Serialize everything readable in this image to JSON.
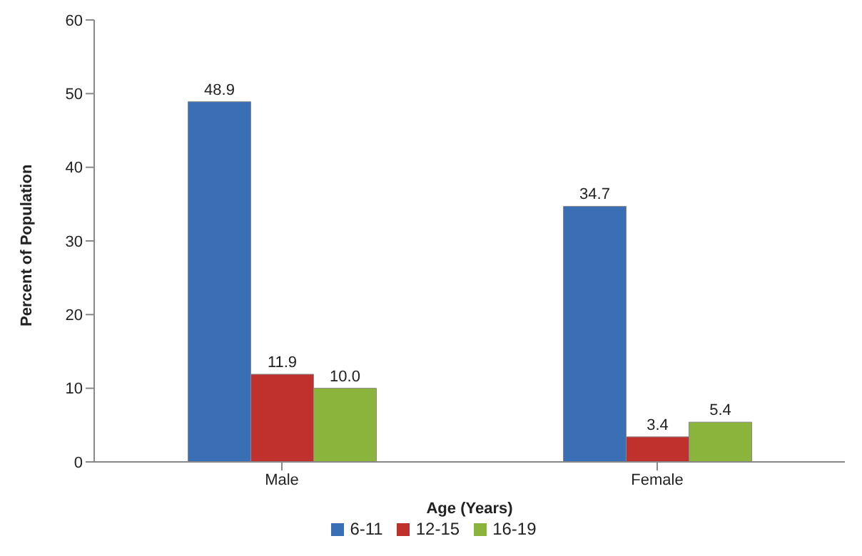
{
  "chart_data": {
    "type": "bar",
    "categories": [
      "Male",
      "Female"
    ],
    "series": [
      {
        "name": "6-11",
        "color": "#3a6fb5",
        "values": [
          48.9,
          34.7
        ],
        "value_labels": [
          "48.9",
          "34.7"
        ]
      },
      {
        "name": "12-15",
        "color": "#c0302c",
        "values": [
          11.9,
          3.4
        ],
        "value_labels": [
          "11.9",
          "3.4"
        ]
      },
      {
        "name": "16-19",
        "color": "#8ab43c",
        "values": [
          10.0,
          5.4
        ],
        "value_labels": [
          "10.0",
          "5.4"
        ]
      }
    ],
    "xlabel": "Age (Years)",
    "ylabel": "Percent of Population",
    "ylim": [
      0,
      60
    ],
    "yticks": [
      0,
      10,
      20,
      30,
      40,
      50,
      60
    ],
    "legend": "bottom"
  }
}
